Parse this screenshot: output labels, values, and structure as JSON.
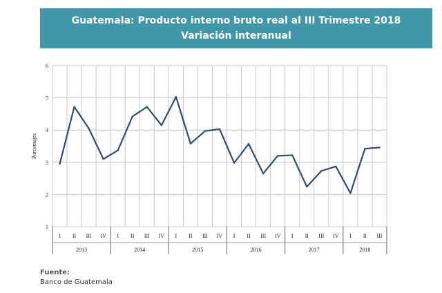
{
  "header": {
    "title_line1": "Guatemala: Producto interno bruto real al III Trimestre 2018",
    "title_line2": "Variación interanual"
  },
  "colors": {
    "header_bg": "#4197a9",
    "line": "#2e4a7a",
    "grid": "#c8c8c8"
  },
  "footer": {
    "source_label": "Fuente:",
    "source_text": "Banco de Guatemala"
  },
  "chart_data": {
    "type": "line",
    "ylabel": "Porcentajes",
    "ylim": [
      1,
      6
    ],
    "yticks": [
      1,
      2,
      3,
      4,
      5,
      6
    ],
    "grid": true,
    "quarter_labels": [
      "I",
      "II",
      "III",
      "IV",
      "I",
      "II",
      "III",
      "IV",
      "I",
      "II",
      "III",
      "IV",
      "I",
      "II",
      "III",
      "IV",
      "I",
      "II",
      "III",
      "IV",
      "I",
      "II",
      "III"
    ],
    "years": [
      {
        "label": "2013",
        "quarters": 4
      },
      {
        "label": "2014",
        "quarters": 4
      },
      {
        "label": "2015",
        "quarters": 4
      },
      {
        "label": "2016",
        "quarters": 4
      },
      {
        "label": "2017",
        "quarters": 4
      },
      {
        "label": "2018",
        "quarters": 3
      }
    ],
    "series": [
      {
        "values": [
          2.95,
          4.72,
          4.05,
          3.1,
          3.37,
          4.42,
          4.72,
          4.15,
          5.03,
          3.58,
          3.97,
          4.03,
          2.98,
          3.57,
          2.65,
          3.2,
          3.22,
          2.24,
          2.73,
          2.87,
          2.04,
          3.42,
          3.46
        ]
      }
    ]
  }
}
